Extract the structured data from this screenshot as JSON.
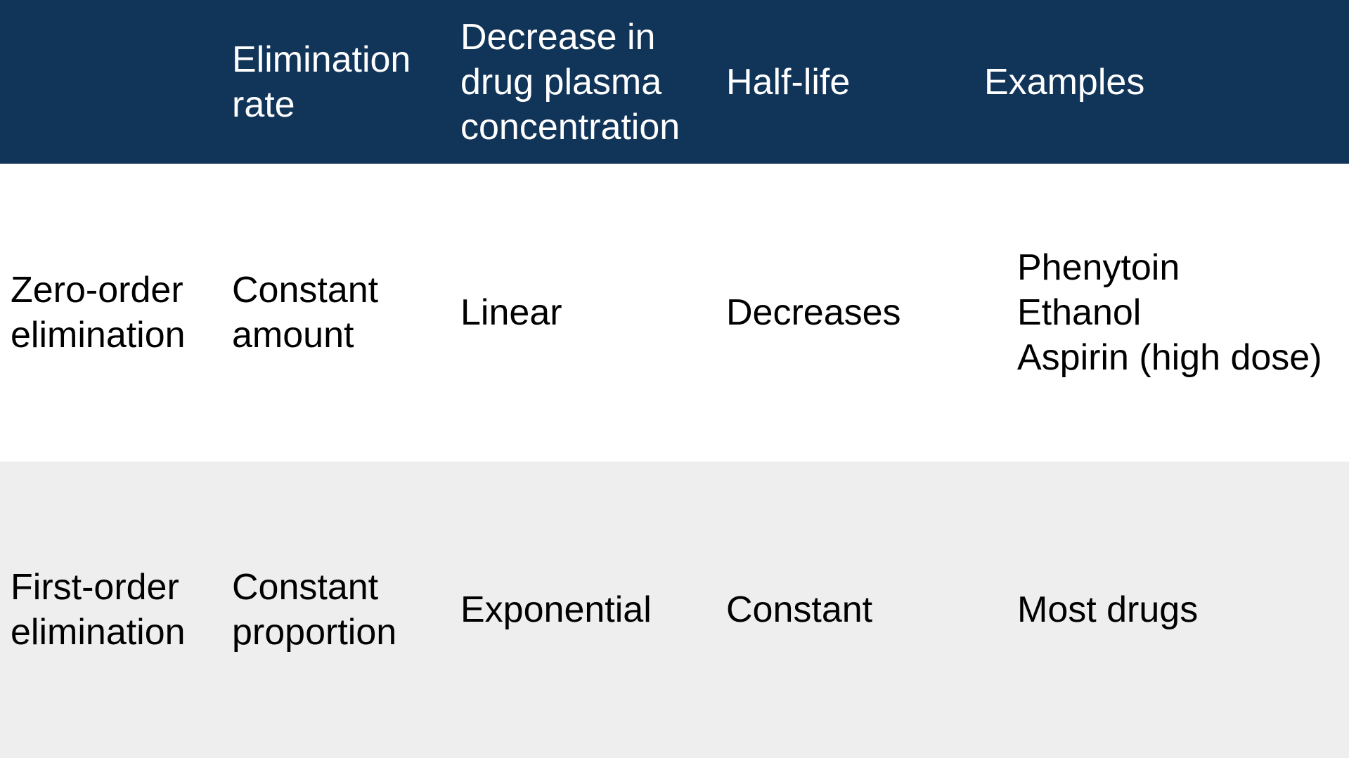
{
  "header": {
    "col1": "",
    "col2": "Elimination\nrate",
    "col3": "Decrease in\ndrug plasma\nconcentration",
    "col4": "Half-life",
    "col5": "Examples"
  },
  "rows": [
    {
      "type": "Zero-order\nelimination",
      "elimination_rate": "Constant\namount",
      "decrease": "Linear",
      "half_life": "Decreases",
      "examples": "Phenytoin\nEthanol\nAspirin (high dose)"
    },
    {
      "type": "First-order\nelimination",
      "elimination_rate": "Constant\nproportion",
      "decrease": "Exponential",
      "half_life": "Constant",
      "examples": "Most drugs"
    }
  ],
  "colors": {
    "header_bg": "#113459",
    "header_text": "#ffffff",
    "row_alt_bg": "#eeeeee"
  }
}
